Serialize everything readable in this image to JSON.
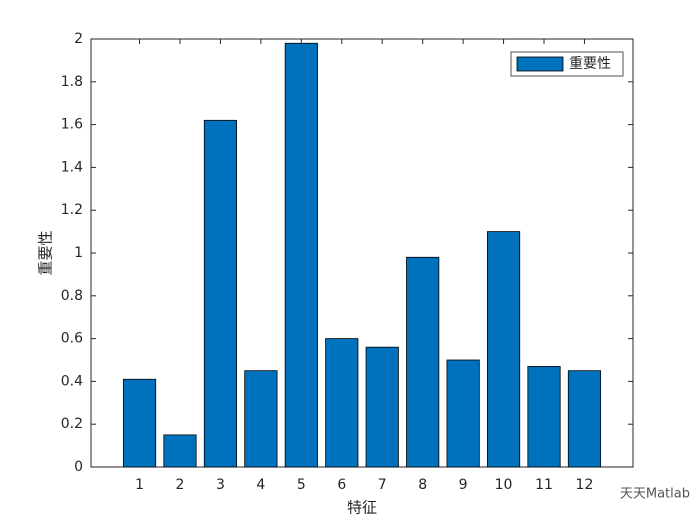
{
  "chart_data": {
    "type": "bar",
    "xlabel": "特征",
    "ylabel": "重要性",
    "categories": [
      "1",
      "2",
      "3",
      "4",
      "5",
      "6",
      "7",
      "8",
      "9",
      "10",
      "11",
      "12"
    ],
    "series": [
      {
        "name": "重要性",
        "color": "#0072bd",
        "values": [
          0.41,
          0.15,
          1.62,
          0.45,
          1.98,
          0.6,
          0.56,
          0.98,
          0.5,
          1.1,
          0.47,
          0.45
        ]
      }
    ],
    "ylim": [
      0,
      2
    ],
    "yticks": [
      0,
      0.2,
      0.4,
      0.6,
      0.8,
      1,
      1.2,
      1.4,
      1.6,
      1.8,
      2
    ],
    "legend": "northeast",
    "watermark": "天天Matlab"
  }
}
